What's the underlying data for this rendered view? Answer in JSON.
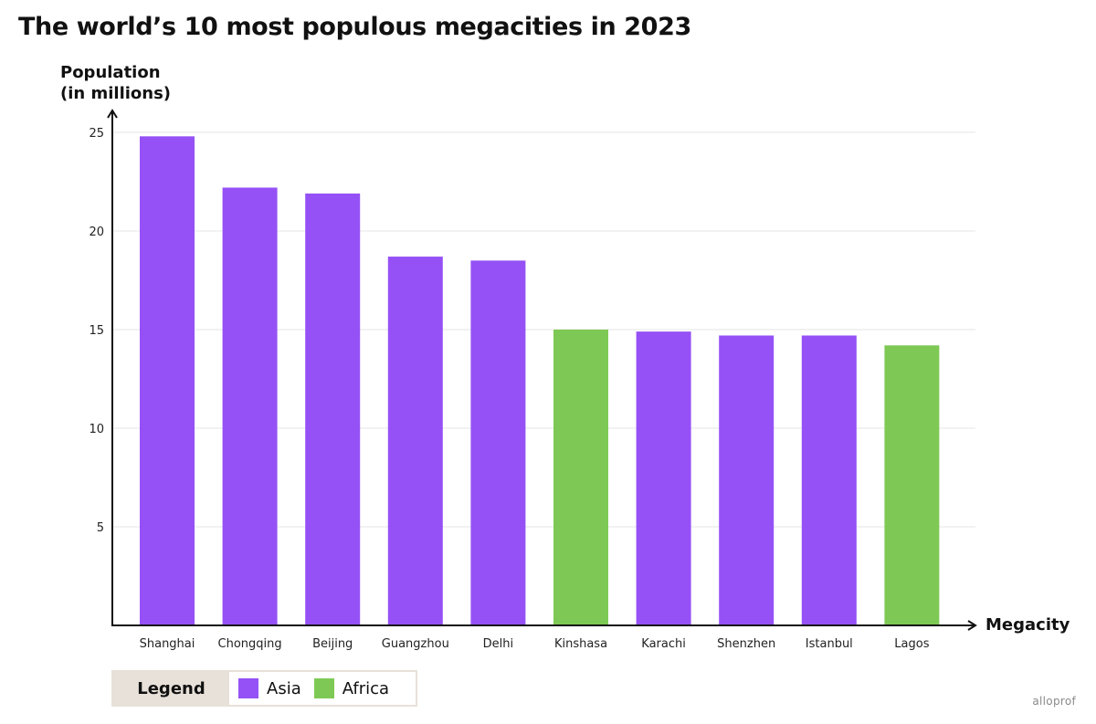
{
  "chart_data": {
    "type": "bar",
    "title": "The world’s 10 most populous megacities in 2023",
    "ylabel_line1": "Population",
    "ylabel_line2": "(in millions)",
    "xlabel": "Megacity",
    "ylim": [
      0,
      25
    ],
    "yticks": [
      5,
      10,
      15,
      20,
      25
    ],
    "grid": true,
    "categories": [
      "Shanghai",
      "Chongqing",
      "Beijing",
      "Guangzhou",
      "Delhi",
      "Kinshasa",
      "Karachi",
      "Shenzhen",
      "Istanbul",
      "Lagos"
    ],
    "values": [
      24.8,
      22.2,
      21.9,
      18.7,
      18.5,
      15.0,
      14.9,
      14.7,
      14.7,
      14.2
    ],
    "groups": [
      "Asia",
      "Asia",
      "Asia",
      "Asia",
      "Asia",
      "Africa",
      "Asia",
      "Asia",
      "Asia",
      "Africa"
    ],
    "legend": {
      "title": "Legend",
      "placement": "bottom-left",
      "entries": [
        {
          "label": "Asia",
          "color": "#9551f5"
        },
        {
          "label": "Africa",
          "color": "#7ec955"
        }
      ]
    }
  },
  "brand": "alloprof",
  "colors": {
    "axis": "#111111",
    "grid": "#e6e6e6",
    "asia": "#9551f5",
    "africa": "#7ec955",
    "legend_bg": "#e8e1d9"
  }
}
